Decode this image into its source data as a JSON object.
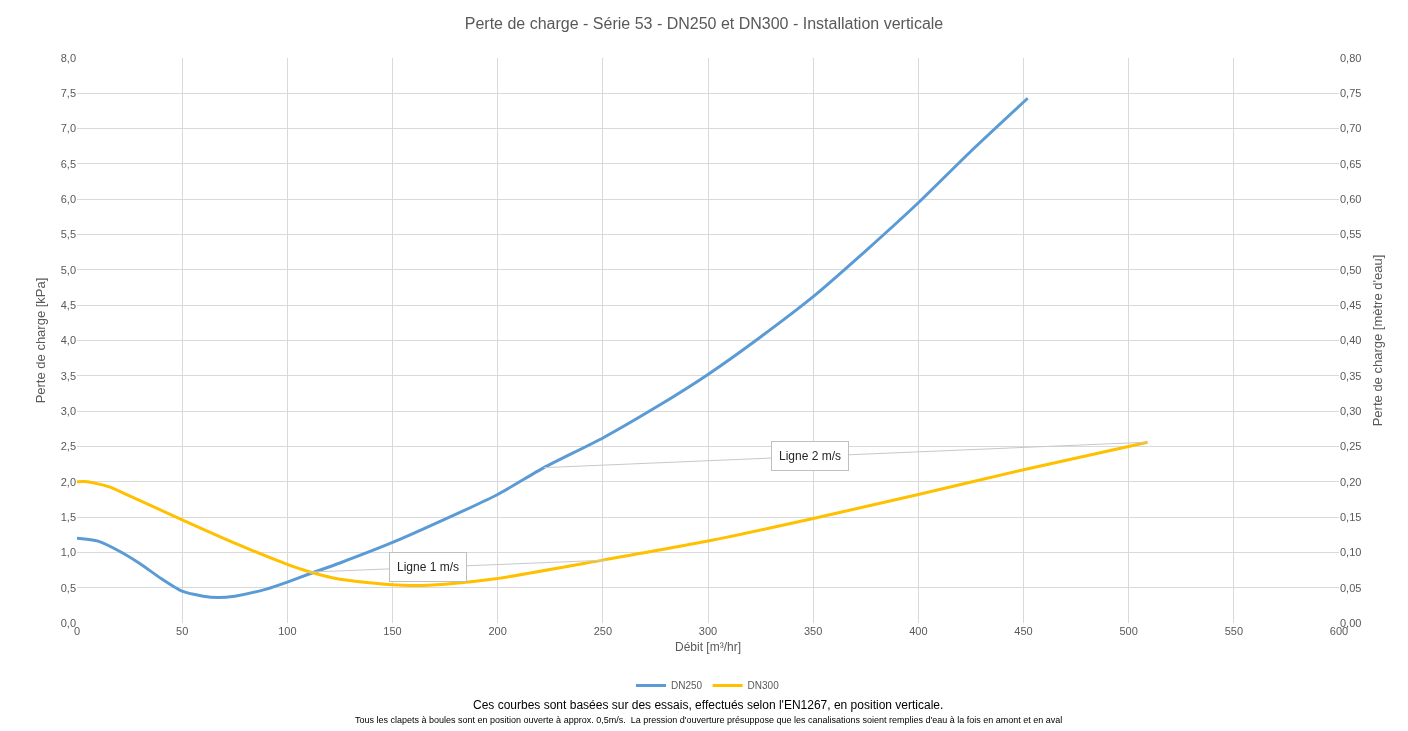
{
  "chart_data": {
    "type": "line",
    "title": "Perte de charge - Série 53 - DN250 et DN300 - Installation verticale",
    "xlabel": "Débit [m³/hr]",
    "ylabel": "Perte de charge [kPa]",
    "y2label": "Perte de charge [mètre d'eau]",
    "series": [
      {
        "name": "DN250",
        "color": "#5b9bd5",
        "x": [
          0,
          10,
          20,
          30,
          40,
          50,
          60,
          67,
          75,
          90,
          100,
          110,
          125,
          150,
          175,
          200,
          222,
          250,
          275,
          300,
          325,
          350,
          375,
          400,
          425,
          452
        ],
        "values": [
          1.2,
          1.16,
          1.02,
          0.84,
          0.63,
          0.45,
          0.38,
          0.36,
          0.38,
          0.48,
          0.58,
          0.69,
          0.85,
          1.14,
          1.47,
          1.82,
          2.2,
          2.62,
          3.05,
          3.52,
          4.05,
          4.62,
          5.27,
          5.95,
          6.68,
          7.43
        ]
      },
      {
        "name": "DN300",
        "color": "#ffc000",
        "x": [
          0,
          5,
          15,
          25,
          50,
          75,
          100,
          110,
          125,
          150,
          160,
          175,
          200,
          250,
          300,
          350,
          400,
          450,
          509
        ],
        "values": [
          2.0,
          2.0,
          1.93,
          1.8,
          1.46,
          1.13,
          0.83,
          0.73,
          0.62,
          0.54,
          0.53,
          0.55,
          0.63,
          0.89,
          1.16,
          1.48,
          1.82,
          2.17,
          2.56
        ]
      },
      {
        "color": "#c8c8c8",
        "x": [
          110,
          252
        ],
        "values": [
          0.72,
          0.89
        ]
      },
      {
        "color": "#c8c8c8",
        "x": [
          222,
          509
        ],
        "values": [
          2.2,
          2.56
        ]
      }
    ],
    "xlim": [
      0,
      600
    ],
    "xticks": [
      0,
      50,
      100,
      150,
      200,
      250,
      300,
      350,
      400,
      450,
      500,
      550,
      600
    ],
    "ylim": [
      0,
      8
    ],
    "yticks": [
      {
        "value": 0,
        "label": "0,0"
      },
      {
        "value": 0.5,
        "label": "0,5"
      },
      {
        "value": 1,
        "label": "1,0"
      },
      {
        "value": 1.5,
        "label": "1,5"
      },
      {
        "value": 2,
        "label": "2,0"
      },
      {
        "value": 2.5,
        "label": "2,5"
      },
      {
        "value": 3,
        "label": "3,0"
      },
      {
        "value": 3.5,
        "label": "3,5"
      },
      {
        "value": 4,
        "label": "4,0"
      },
      {
        "value": 4.5,
        "label": "4,5"
      },
      {
        "value": 5,
        "label": "5,0"
      },
      {
        "value": 5.5,
        "label": "5,5"
      },
      {
        "value": 6,
        "label": "6,0"
      },
      {
        "value": 6.5,
        "label": "6,5"
      },
      {
        "value": 7,
        "label": "7,0"
      },
      {
        "value": 7.5,
        "label": "7,5"
      },
      {
        "value": 8,
        "label": "8,0"
      }
    ],
    "y2lim": [
      0,
      0.8
    ],
    "y2ticks": [
      {
        "value": 0,
        "label": "0,00"
      },
      {
        "value": 0.05,
        "label": "0,05"
      },
      {
        "value": 0.1,
        "label": "0,10"
      },
      {
        "value": 0.15,
        "label": "0,15"
      },
      {
        "value": 0.2,
        "label": "0,20"
      },
      {
        "value": 0.25,
        "label": "0,25"
      },
      {
        "value": 0.3,
        "label": "0,30"
      },
      {
        "value": 0.35,
        "label": "0,35"
      },
      {
        "value": 0.4,
        "label": "0,40"
      },
      {
        "value": 0.45,
        "label": "0,45"
      },
      {
        "value": 0.5,
        "label": "0,50"
      },
      {
        "value": 0.55,
        "label": "0,55"
      },
      {
        "value": 0.6,
        "label": "0,60"
      },
      {
        "value": 0.65,
        "label": "0,65"
      },
      {
        "value": 0.7,
        "label": "0,70"
      },
      {
        "value": 0.75,
        "label": "0,75"
      },
      {
        "value": 0.8,
        "label": "0,80"
      }
    ],
    "grid": true,
    "legend": "bottom",
    "marker": "none",
    "line_style": "solid",
    "annotations": [
      {
        "text": "Ligne 1 m/s",
        "x": 167,
        "y": 0.79
      },
      {
        "text": "Ligne 2 m/s",
        "x": 348.5,
        "y": 2.36
      },
      "Ces courbes sont basées sur des essais, effectués selon l'EN1267, en position verticale.",
      "Tous les clapets à boules sont en position ouverte à approx. 0,5m/s.  La pression d'ouverture présuppose que les canalisations soient remplies d'eau à la fois en amont et en aval"
    ]
  }
}
